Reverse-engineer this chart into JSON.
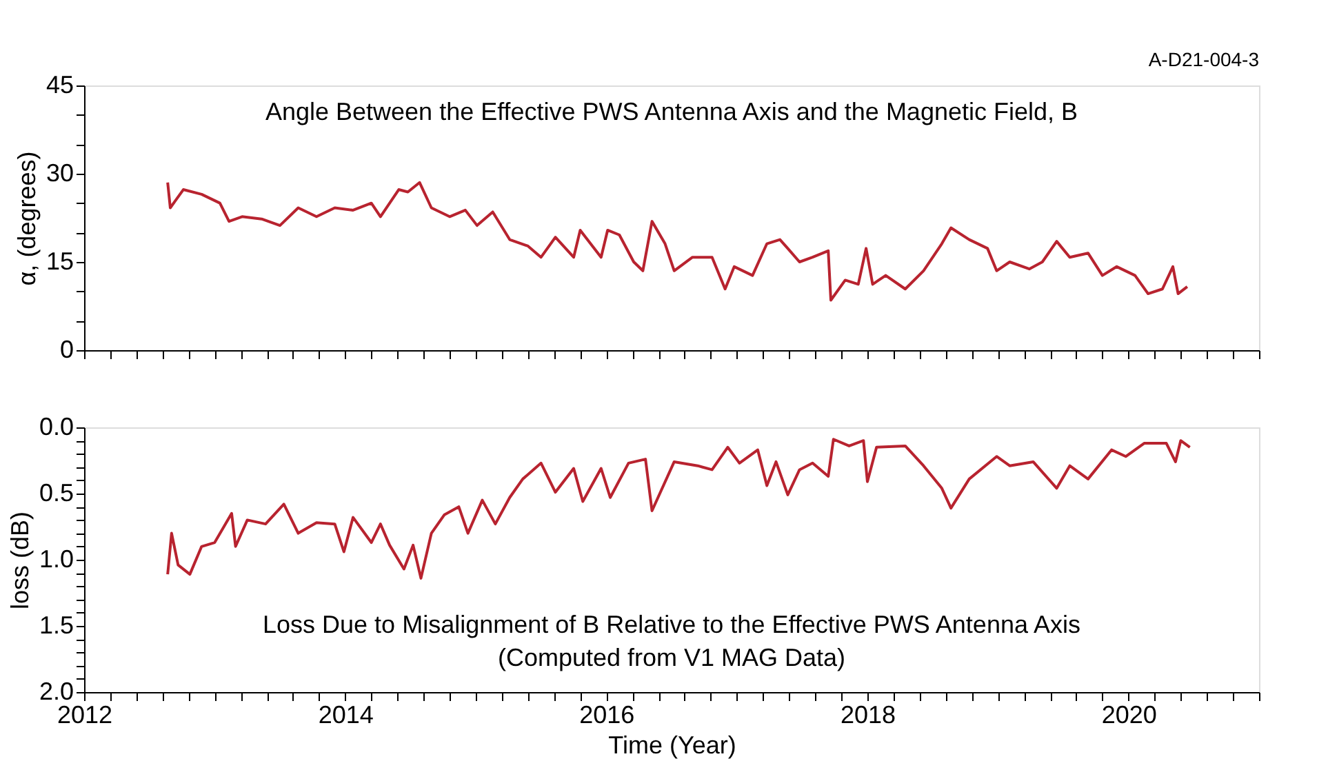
{
  "chart_data": [
    {
      "type": "line",
      "title": "Angle Between the Effective PWS Antenna Axis and the Magnetic Field, B",
      "ylabel": "α, (degrees)",
      "annotations": [
        "A-D21-004-3"
      ],
      "series": [
        {
          "color": "#b8232f",
          "x": [
            2012.64,
            2012.66,
            2012.76,
            2012.9,
            2013.04,
            2013.11,
            2013.21,
            2013.36,
            2013.5,
            2013.64,
            2013.78,
            2013.92,
            2014.06,
            2014.2,
            2014.27,
            2014.41,
            2014.48,
            2014.57,
            2014.66,
            2014.8,
            2014.92,
            2015.01,
            2015.13,
            2015.26,
            2015.4,
            2015.5,
            2015.61,
            2015.75,
            2015.8,
            2015.96,
            2016.01,
            2016.1,
            2016.21,
            2016.28,
            2016.35,
            2016.45,
            2016.52,
            2016.66,
            2016.81,
            2016.91,
            2016.98,
            2017.12,
            2017.23,
            2017.33,
            2017.39,
            2017.48,
            2017.58,
            2017.7,
            2017.72,
            2017.83,
            2017.93,
            2017.99,
            2018.04,
            2018.14,
            2018.29,
            2018.43,
            2018.57,
            2018.64,
            2018.78,
            2018.92,
            2018.99,
            2019.09,
            2019.24,
            2019.34,
            2019.45,
            2019.55,
            2019.69,
            2019.8,
            2019.91,
            2020.05,
            2020.15,
            2020.26,
            2020.34,
            2020.38,
            2020.45
          ],
          "values": [
            28.5,
            24.2,
            27.3,
            26.5,
            25,
            21.9,
            22.7,
            22.3,
            21.2,
            24.2,
            22.7,
            24.2,
            23.8,
            25,
            22.7,
            27.3,
            26.9,
            28.5,
            24.2,
            22.7,
            23.8,
            21.2,
            23.5,
            18.8,
            17.7,
            15.8,
            19.2,
            15.8,
            20.4,
            15.8,
            20.4,
            19.6,
            15,
            13.5,
            21.9,
            18.1,
            13.5,
            15.8,
            15.8,
            10.4,
            14.2,
            12.7,
            18.1,
            18.8,
            17.3,
            15,
            15.8,
            16.9,
            8.5,
            11.9,
            11.2,
            17.3,
            11.2,
            12.7,
            10.4,
            13.5,
            18.1,
            20.8,
            18.8,
            17.3,
            13.5,
            15,
            13.8,
            15,
            18.5,
            15.8,
            16.5,
            12.7,
            14.2,
            12.7,
            9.6,
            10.4,
            14.2,
            9.6,
            10.8
          ]
        }
      ],
      "xlim": [
        2012,
        2021
      ],
      "ylim": [
        0,
        45
      ],
      "xticks": [
        {
          "value": 2012,
          "label": null
        },
        {
          "value": 2012.2,
          "label": null
        },
        {
          "value": 2012.4,
          "label": null
        },
        {
          "value": 2012.6,
          "label": null
        },
        {
          "value": 2012.8,
          "label": null
        },
        {
          "value": 2013,
          "label": null
        },
        {
          "value": 2013.2,
          "label": null
        },
        {
          "value": 2013.4,
          "label": null
        },
        {
          "value": 2013.6,
          "label": null
        },
        {
          "value": 2013.8,
          "label": null
        },
        {
          "value": 2014,
          "label": null
        },
        {
          "value": 2014.2,
          "label": null
        },
        {
          "value": 2014.4,
          "label": null
        },
        {
          "value": 2014.6,
          "label": null
        },
        {
          "value": 2014.8,
          "label": null
        },
        {
          "value": 2015,
          "label": null
        },
        {
          "value": 2015.2,
          "label": null
        },
        {
          "value": 2015.4,
          "label": null
        },
        {
          "value": 2015.6,
          "label": null
        },
        {
          "value": 2015.8,
          "label": null
        },
        {
          "value": 2016,
          "label": null
        },
        {
          "value": 2016.2,
          "label": null
        },
        {
          "value": 2016.4,
          "label": null
        },
        {
          "value": 2016.6,
          "label": null
        },
        {
          "value": 2016.8,
          "label": null
        },
        {
          "value": 2017,
          "label": null
        },
        {
          "value": 2017.2,
          "label": null
        },
        {
          "value": 2017.4,
          "label": null
        },
        {
          "value": 2017.6,
          "label": null
        },
        {
          "value": 2017.8,
          "label": null
        },
        {
          "value": 2018,
          "label": null
        },
        {
          "value": 2018.2,
          "label": null
        },
        {
          "value": 2018.4,
          "label": null
        },
        {
          "value": 2018.6,
          "label": null
        },
        {
          "value": 2018.8,
          "label": null
        },
        {
          "value": 2019,
          "label": null
        },
        {
          "value": 2019.2,
          "label": null
        },
        {
          "value": 2019.4,
          "label": null
        },
        {
          "value": 2019.6,
          "label": null
        },
        {
          "value": 2019.8,
          "label": null
        },
        {
          "value": 2020,
          "label": null
        },
        {
          "value": 2020.2,
          "label": null
        },
        {
          "value": 2020.4,
          "label": null
        },
        {
          "value": 2020.6,
          "label": null
        },
        {
          "value": 2020.8,
          "label": null
        },
        {
          "value": 2021,
          "label": null
        }
      ],
      "yticks": [
        0,
        {
          "value": 5,
          "label": null
        },
        {
          "value": 10,
          "label": null
        },
        15,
        {
          "value": 20,
          "label": null
        },
        {
          "value": 25,
          "label": null
        },
        30,
        {
          "value": 35,
          "label": null
        },
        {
          "value": 40,
          "label": null
        },
        45
      ],
      "tick_labels": "y",
      "grid": false,
      "marker": "none",
      "line_style": "solid"
    },
    {
      "type": "line",
      "title": "Loss Due to Misalignment of B Relative to the Effective PWS Antenna Axis",
      "subtitle": "(Computed from V1 MAG Data)",
      "xlabel": "Time (Year)",
      "ylabel": "loss (dB)",
      "series": [
        {
          "color": "#b8232f",
          "x": [
            2012.64,
            2012.67,
            2012.72,
            2012.81,
            2012.9,
            2013.0,
            2013.13,
            2013.16,
            2013.25,
            2013.39,
            2013.53,
            2013.64,
            2013.78,
            2013.92,
            2013.99,
            2014.06,
            2014.2,
            2014.27,
            2014.34,
            2014.45,
            2014.52,
            2014.58,
            2014.66,
            2014.76,
            2014.87,
            2014.94,
            2015.05,
            2015.15,
            2015.26,
            2015.36,
            2015.5,
            2015.61,
            2015.75,
            2015.82,
            2015.96,
            2016.03,
            2016.17,
            2016.3,
            2016.35,
            2016.52,
            2016.7,
            2016.81,
            2016.93,
            2017.02,
            2017.16,
            2017.23,
            2017.3,
            2017.39,
            2017.48,
            2017.58,
            2017.7,
            2017.74,
            2017.86,
            2017.97,
            2018.0,
            2018.07,
            2018.29,
            2018.43,
            2018.57,
            2018.64,
            2018.78,
            2018.99,
            2019.09,
            2019.27,
            2019.45,
            2019.55,
            2019.69,
            2019.87,
            2019.98,
            2020.12,
            2020.29,
            2020.36,
            2020.4,
            2020.47
          ],
          "values": [
            1.11,
            0.8,
            1.04,
            1.11,
            0.9,
            0.87,
            0.65,
            0.9,
            0.7,
            0.73,
            0.58,
            0.8,
            0.72,
            0.73,
            0.94,
            0.68,
            0.87,
            0.73,
            0.89,
            1.07,
            0.89,
            1.14,
            0.8,
            0.66,
            0.6,
            0.8,
            0.55,
            0.73,
            0.53,
            0.39,
            0.27,
            0.49,
            0.31,
            0.56,
            0.31,
            0.53,
            0.27,
            0.24,
            0.63,
            0.26,
            0.29,
            0.32,
            0.15,
            0.27,
            0.17,
            0.44,
            0.26,
            0.51,
            0.32,
            0.27,
            0.37,
            0.09,
            0.14,
            0.1,
            0.41,
            0.15,
            0.14,
            0.29,
            0.46,
            0.61,
            0.39,
            0.22,
            0.29,
            0.26,
            0.46,
            0.29,
            0.39,
            0.17,
            0.22,
            0.12,
            0.12,
            0.26,
            0.1,
            0.15
          ]
        }
      ],
      "xlim": [
        2012,
        2021
      ],
      "ylim": [
        2.0,
        0.0
      ],
      "xticks": [
        2012,
        {
          "value": 2012.2,
          "label": null
        },
        {
          "value": 2012.4,
          "label": null
        },
        {
          "value": 2012.6,
          "label": null
        },
        {
          "value": 2012.8,
          "label": null
        },
        {
          "value": 2013,
          "label": null
        },
        {
          "value": 2013.2,
          "label": null
        },
        {
          "value": 2013.4,
          "label": null
        },
        {
          "value": 2013.6,
          "label": null
        },
        {
          "value": 2013.8,
          "label": null
        },
        2014,
        {
          "value": 2014.2,
          "label": null
        },
        {
          "value": 2014.4,
          "label": null
        },
        {
          "value": 2014.6,
          "label": null
        },
        {
          "value": 2014.8,
          "label": null
        },
        {
          "value": 2015,
          "label": null
        },
        {
          "value": 2015.2,
          "label": null
        },
        {
          "value": 2015.4,
          "label": null
        },
        {
          "value": 2015.6,
          "label": null
        },
        {
          "value": 2015.8,
          "label": null
        },
        2016,
        {
          "value": 2016.2,
          "label": null
        },
        {
          "value": 2016.4,
          "label": null
        },
        {
          "value": 2016.6,
          "label": null
        },
        {
          "value": 2016.8,
          "label": null
        },
        {
          "value": 2017,
          "label": null
        },
        {
          "value": 2017.2,
          "label": null
        },
        {
          "value": 2017.4,
          "label": null
        },
        {
          "value": 2017.6,
          "label": null
        },
        {
          "value": 2017.8,
          "label": null
        },
        2018,
        {
          "value": 2018.2,
          "label": null
        },
        {
          "value": 2018.4,
          "label": null
        },
        {
          "value": 2018.6,
          "label": null
        },
        {
          "value": 2018.8,
          "label": null
        },
        {
          "value": 2019,
          "label": null
        },
        {
          "value": 2019.2,
          "label": null
        },
        {
          "value": 2019.4,
          "label": null
        },
        {
          "value": 2019.6,
          "label": null
        },
        {
          "value": 2019.8,
          "label": null
        },
        2020,
        {
          "value": 2020.2,
          "label": null
        },
        {
          "value": 2020.4,
          "label": null
        },
        {
          "value": 2020.6,
          "label": null
        },
        {
          "value": 2020.8,
          "label": null
        },
        {
          "value": 2021,
          "label": null
        }
      ],
      "yticks": [
        {
          "value": 0,
          "label": "0.0"
        },
        {
          "value": 0.1,
          "label": null
        },
        {
          "value": 0.2,
          "label": null
        },
        {
          "value": 0.3,
          "label": null
        },
        {
          "value": 0.4,
          "label": null
        },
        {
          "value": 0.5,
          "label": "0.5"
        },
        {
          "value": 0.6,
          "label": null
        },
        {
          "value": 0.7,
          "label": null
        },
        {
          "value": 0.8,
          "label": null
        },
        {
          "value": 0.9,
          "label": null
        },
        {
          "value": 1.0,
          "label": "1.0"
        },
        {
          "value": 1.1,
          "label": null
        },
        {
          "value": 1.2,
          "label": null
        },
        {
          "value": 1.3,
          "label": null
        },
        {
          "value": 1.4,
          "label": null
        },
        {
          "value": 1.5,
          "label": "1.5"
        },
        {
          "value": 1.6,
          "label": null
        },
        {
          "value": 1.7,
          "label": null
        },
        {
          "value": 1.8,
          "label": null
        },
        {
          "value": 1.9,
          "label": null
        },
        {
          "value": 2.0,
          "label": "2.0"
        }
      ],
      "grid": false,
      "marker": "none",
      "line_style": "solid"
    }
  ]
}
